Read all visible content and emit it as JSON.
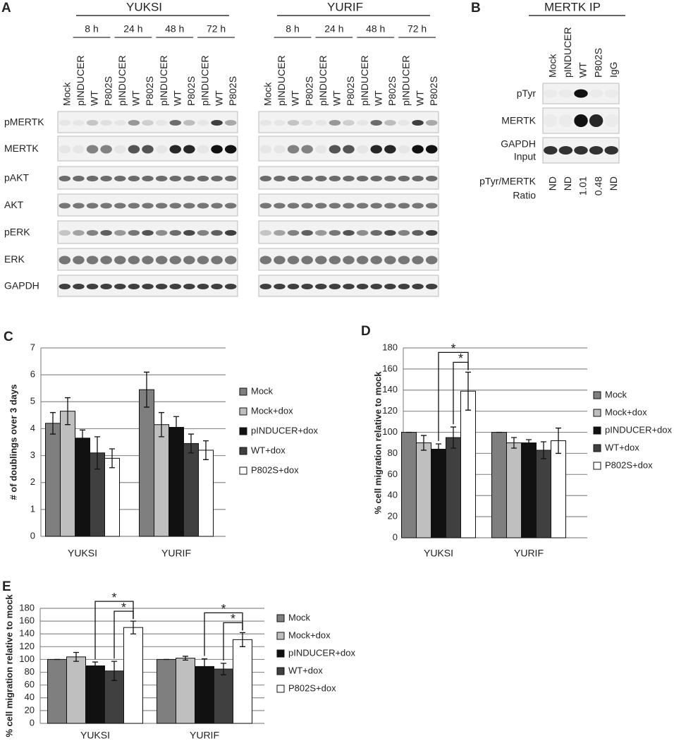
{
  "blot_a": {
    "panel_label": "A",
    "groups": [
      {
        "name": "YUKSI",
        "times": [
          "8 h",
          "24 h",
          "48 h",
          "72 h"
        ],
        "lanes": [
          "Mock",
          "pINDUCER",
          "WT",
          "P802S",
          "pINDUCER",
          "WT",
          "P802S",
          "pINDUCER",
          "WT",
          "P802S",
          "pINDUCER",
          "WT",
          "P802S"
        ]
      },
      {
        "name": "YURIF",
        "times": [
          "8 h",
          "24 h",
          "48 h",
          "72 h"
        ],
        "lanes": [
          "Mock",
          "pINDUCER",
          "WT",
          "P802S",
          "pINDUCER",
          "WT",
          "P802S",
          "pINDUCER",
          "WT",
          "P802S",
          "pINDUCER",
          "WT",
          "P802S"
        ]
      }
    ],
    "rows": [
      "pMERTK",
      "MERTK",
      "pAKT",
      "AKT",
      "pERK",
      "ERK",
      "GAPDH"
    ]
  },
  "blot_b": {
    "panel_label": "B",
    "title": "MERTK IP",
    "lanes": [
      "Mock",
      "pINDUCER",
      "WT",
      "P802S",
      "IgG"
    ],
    "rows": [
      [
        "pTyr"
      ],
      [
        "MERTK"
      ],
      [
        "GAPDH",
        "Input"
      ]
    ],
    "ratio": {
      "label": [
        "pTyr/MERTK",
        "Ratio"
      ],
      "values": [
        "ND",
        "ND",
        1.01,
        0.48,
        "ND"
      ]
    }
  },
  "chart_data": [
    {
      "type": "bar",
      "panel_label": "C",
      "y_label": "# of doublings over 3 days",
      "categories": [
        "YUKSI",
        "YURIF"
      ],
      "ylim": [
        0,
        7
      ],
      "yticks": [
        0,
        1,
        2,
        3,
        4,
        5,
        6,
        7
      ],
      "grid": true,
      "annotations": [],
      "series": [
        {
          "name": "Mock",
          "color": "#7f7f7f",
          "values": [
            4.2,
            5.45
          ],
          "errors": [
            0.4,
            0.65
          ]
        },
        {
          "name": "Mock+dox",
          "color": "#bfbfbf",
          "values": [
            4.65,
            4.15
          ],
          "errors": [
            0.5,
            0.45
          ]
        },
        {
          "name": "pINDUCER+dox",
          "color": "#111111",
          "values": [
            3.65,
            4.05
          ],
          "errors": [
            0.3,
            0.4
          ]
        },
        {
          "name": "WT+dox",
          "color": "#404040",
          "values": [
            3.1,
            3.45
          ],
          "errors": [
            0.6,
            0.35
          ]
        },
        {
          "name": "P802S+dox",
          "color": "#ffffff",
          "values": [
            2.9,
            3.2
          ],
          "errors": [
            0.35,
            0.35
          ]
        }
      ]
    },
    {
      "type": "bar",
      "panel_label": "D",
      "y_label": "% cell migration relative to mock",
      "categories": [
        "YUKSI",
        "YURIF"
      ],
      "ylim": [
        0,
        180
      ],
      "yticks": [
        0,
        20,
        40,
        60,
        80,
        100,
        120,
        140,
        160,
        180
      ],
      "grid": true,
      "annotations": [
        "*",
        "*"
      ],
      "series": [
        {
          "name": "Mock",
          "color": "#7f7f7f",
          "values": [
            100,
            100
          ],
          "errors": [
            0,
            0
          ]
        },
        {
          "name": "Mock+dox",
          "color": "#bfbfbf",
          "values": [
            90,
            90
          ],
          "errors": [
            7,
            5
          ]
        },
        {
          "name": "pINDUCER+dox",
          "color": "#111111",
          "values": [
            84,
            90
          ],
          "errors": [
            5,
            3
          ]
        },
        {
          "name": "WT+dox",
          "color": "#404040",
          "values": [
            95,
            83
          ],
          "errors": [
            10,
            8
          ]
        },
        {
          "name": "P802S+dox",
          "color": "#ffffff",
          "values": [
            139,
            92
          ],
          "errors": [
            18,
            12
          ]
        }
      ]
    },
    {
      "type": "bar",
      "panel_label": "E",
      "y_label": "% cell migration relative to mock",
      "categories": [
        "YUKSI",
        "YURIF"
      ],
      "ylim": [
        0,
        180
      ],
      "yticks": [
        0,
        20,
        40,
        60,
        80,
        100,
        120,
        140,
        160,
        180
      ],
      "grid": true,
      "annotations": [
        "*",
        "*",
        "*",
        "*"
      ],
      "series": [
        {
          "name": "Mock",
          "color": "#7f7f7f",
          "values": [
            100,
            100
          ],
          "errors": [
            0,
            0
          ]
        },
        {
          "name": "Mock+dox",
          "color": "#bfbfbf",
          "values": [
            104,
            102
          ],
          "errors": [
            7,
            3
          ]
        },
        {
          "name": "pINDUCER+dox",
          "color": "#111111",
          "values": [
            90,
            89
          ],
          "errors": [
            6,
            12
          ]
        },
        {
          "name": "WT+dox",
          "color": "#404040",
          "values": [
            82,
            85
          ],
          "errors": [
            15,
            9
          ]
        },
        {
          "name": "P802S+dox",
          "color": "#ffffff",
          "values": [
            150,
            131
          ],
          "errors": [
            10,
            11
          ]
        }
      ]
    }
  ]
}
